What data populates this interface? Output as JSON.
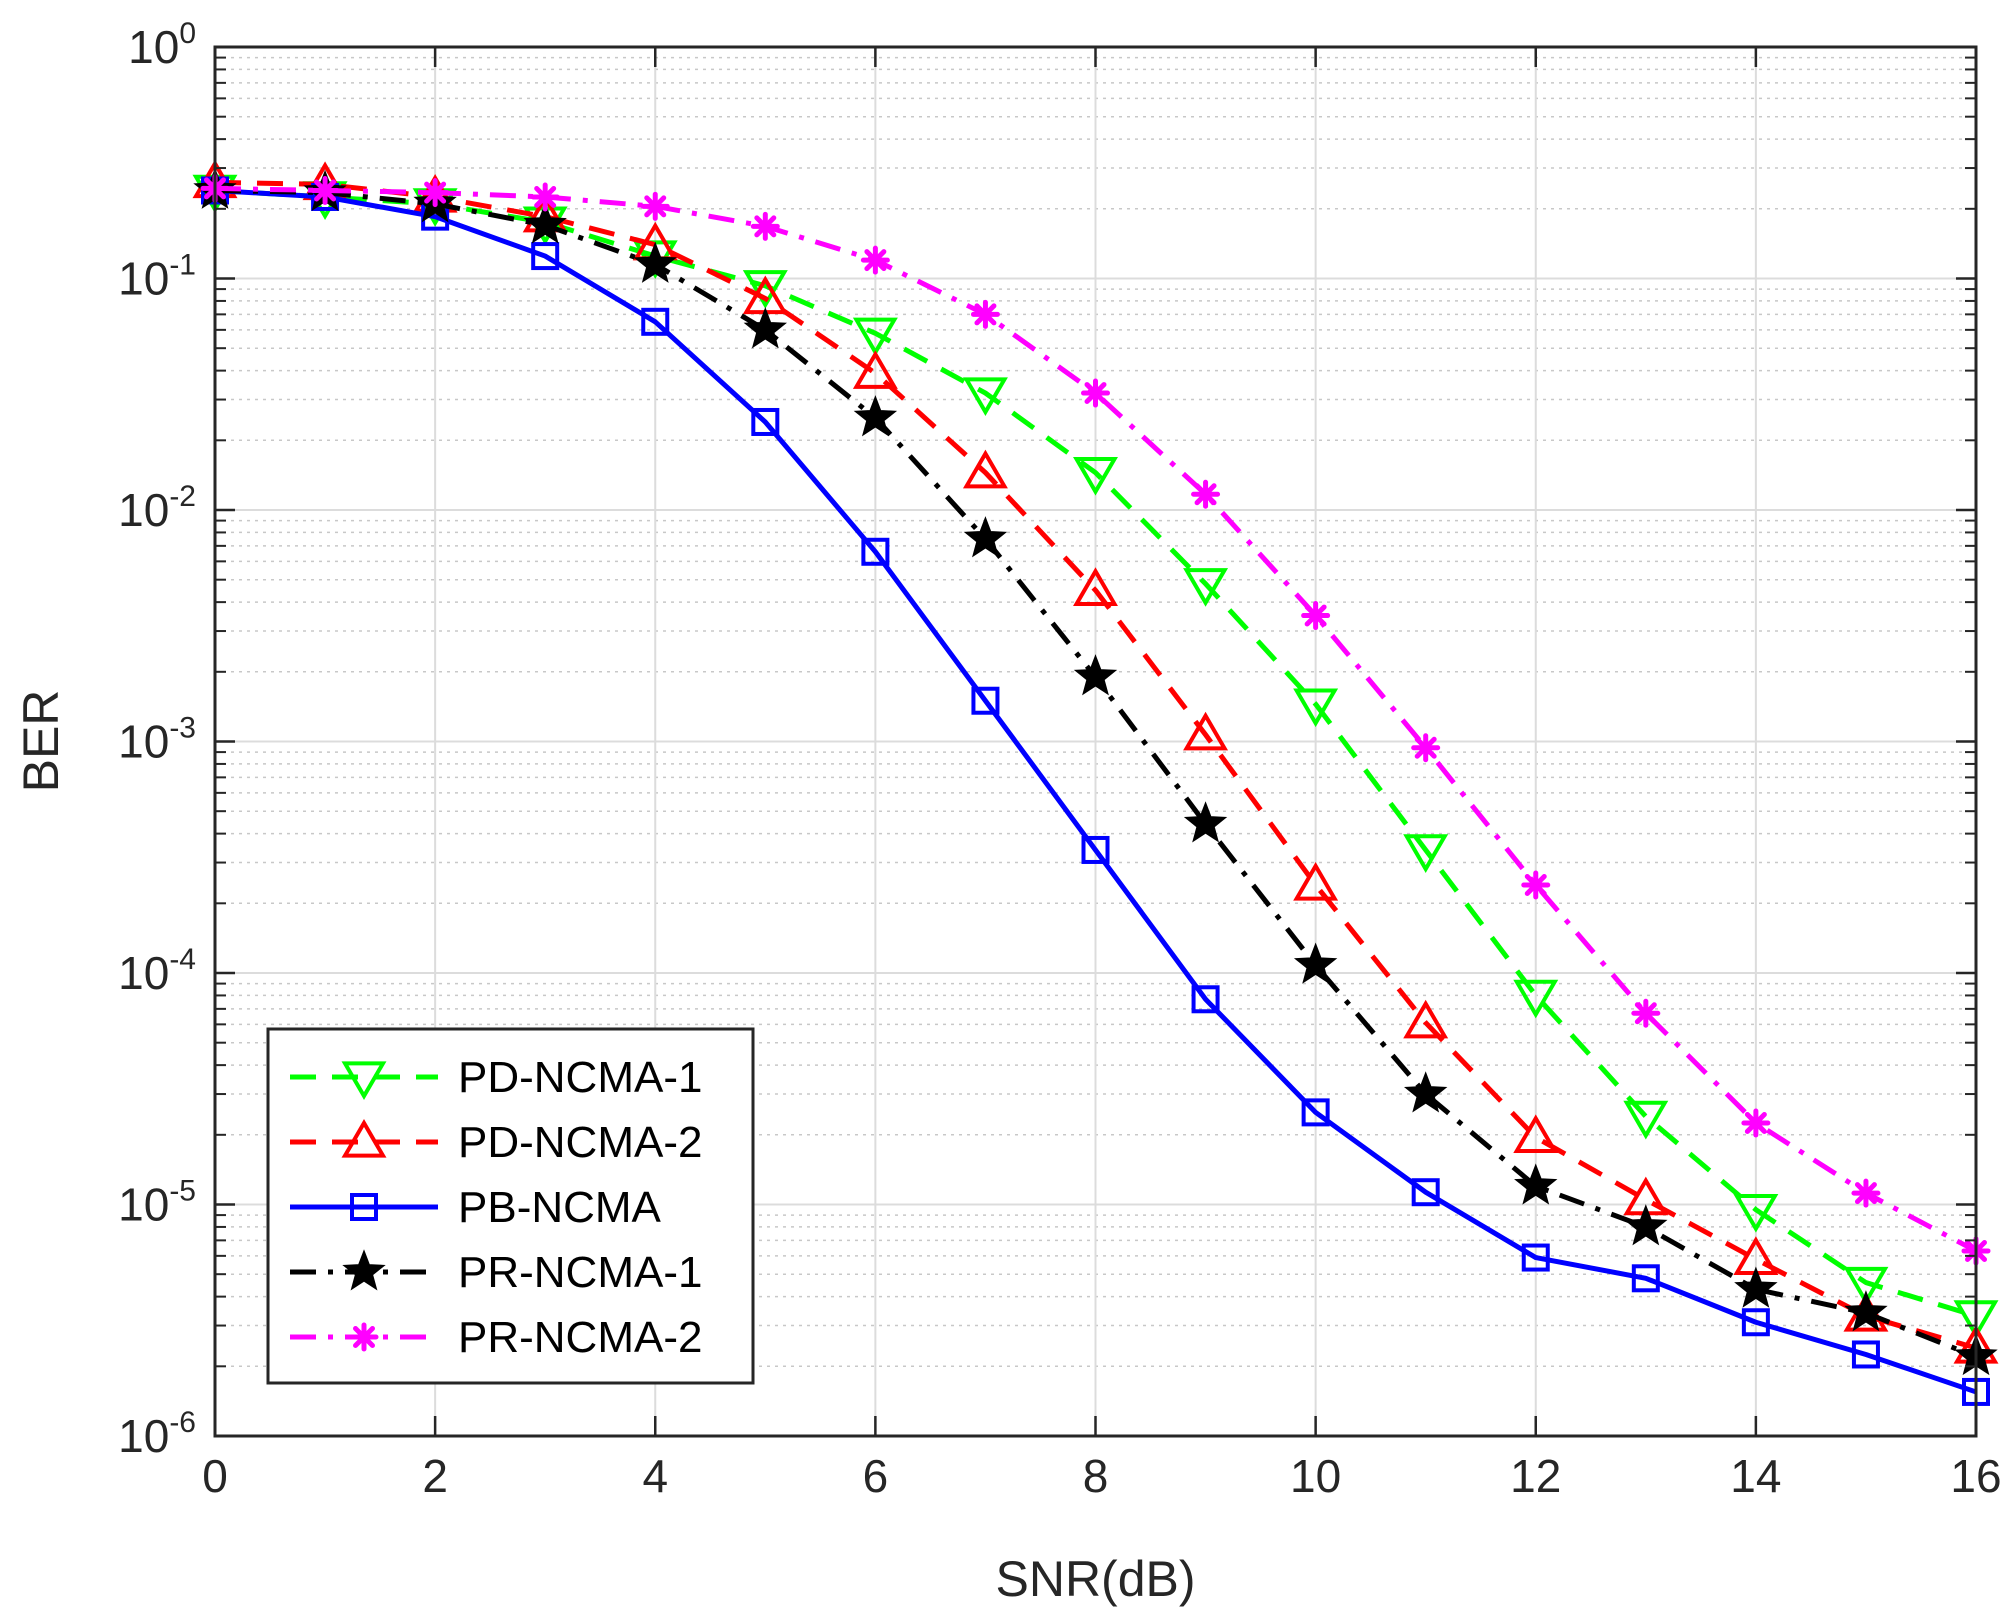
{
  "chart_data": {
    "type": "line",
    "title": "",
    "xlabel": "SNR(dB)",
    "ylabel": "BER",
    "xlim": [
      0,
      16
    ],
    "ylim": [
      1e-06,
      1
    ],
    "yscale": "log",
    "grid": true,
    "legend_position": "bottom-left",
    "x": [
      0,
      1,
      2,
      3,
      4,
      5,
      6,
      7,
      8,
      9,
      10,
      11,
      12,
      13,
      14,
      15,
      16
    ],
    "x_ticks": [
      "0",
      "2",
      "4",
      "6",
      "8",
      "10",
      "12",
      "14",
      "16"
    ],
    "y_ticks": [
      {
        "base": "10",
        "exp": "0"
      },
      {
        "base": "10",
        "exp": "-1"
      },
      {
        "base": "10",
        "exp": "-2"
      },
      {
        "base": "10",
        "exp": "-3"
      },
      {
        "base": "10",
        "exp": "-4"
      },
      {
        "base": "10",
        "exp": "-5"
      },
      {
        "base": "10",
        "exp": "-6"
      }
    ],
    "series": [
      {
        "name": "PD-NCMA-1",
        "color": "#00ff00",
        "line": "dashed",
        "marker": "triangle-down",
        "values": [
          0.24,
          0.225,
          0.21,
          0.175,
          0.125,
          0.093,
          0.058,
          0.032,
          0.0145,
          0.0048,
          0.00145,
          0.00034,
          8e-05,
          2.4e-05,
          9.5e-06,
          4.6e-06,
          3.3e-06
        ]
      },
      {
        "name": "PD-NCMA-2",
        "color": "#ff0000",
        "line": "dashed",
        "marker": "triangle-up",
        "values": [
          0.26,
          0.255,
          0.225,
          0.185,
          0.14,
          0.082,
          0.039,
          0.0145,
          0.0045,
          0.00107,
          0.00024,
          6.1e-05,
          1.95e-05,
          1.05e-05,
          5.8e-06,
          3.3e-06,
          2.4e-06
        ]
      },
      {
        "name": "PB-NCMA",
        "color": "#0000ff",
        "line": "solid",
        "marker": "square",
        "values": [
          0.24,
          0.225,
          0.185,
          0.125,
          0.065,
          0.024,
          0.0066,
          0.0015,
          0.00034,
          7.7e-05,
          2.5e-05,
          1.13e-05,
          5.9e-06,
          4.8e-06,
          3.1e-06,
          2.25e-06,
          1.55e-06
        ]
      },
      {
        "name": "PR-NCMA-1",
        "color": "#000000",
        "line": "dashdot",
        "marker": "star",
        "values": [
          0.24,
          0.235,
          0.21,
          0.17,
          0.115,
          0.06,
          0.025,
          0.0075,
          0.0019,
          0.00044,
          0.000108,
          3e-05,
          1.2e-05,
          8e-06,
          4.3e-06,
          3.4e-06,
          2.2e-06
        ]
      },
      {
        "name": "PR-NCMA-2",
        "color": "#ff00ff",
        "line": "dashdot",
        "marker": "asterisk",
        "values": [
          0.245,
          0.24,
          0.235,
          0.225,
          0.205,
          0.168,
          0.12,
          0.07,
          0.032,
          0.0117,
          0.0035,
          0.00094,
          0.00024,
          6.7e-05,
          2.25e-05,
          1.12e-05,
          6.3e-06
        ]
      }
    ]
  }
}
